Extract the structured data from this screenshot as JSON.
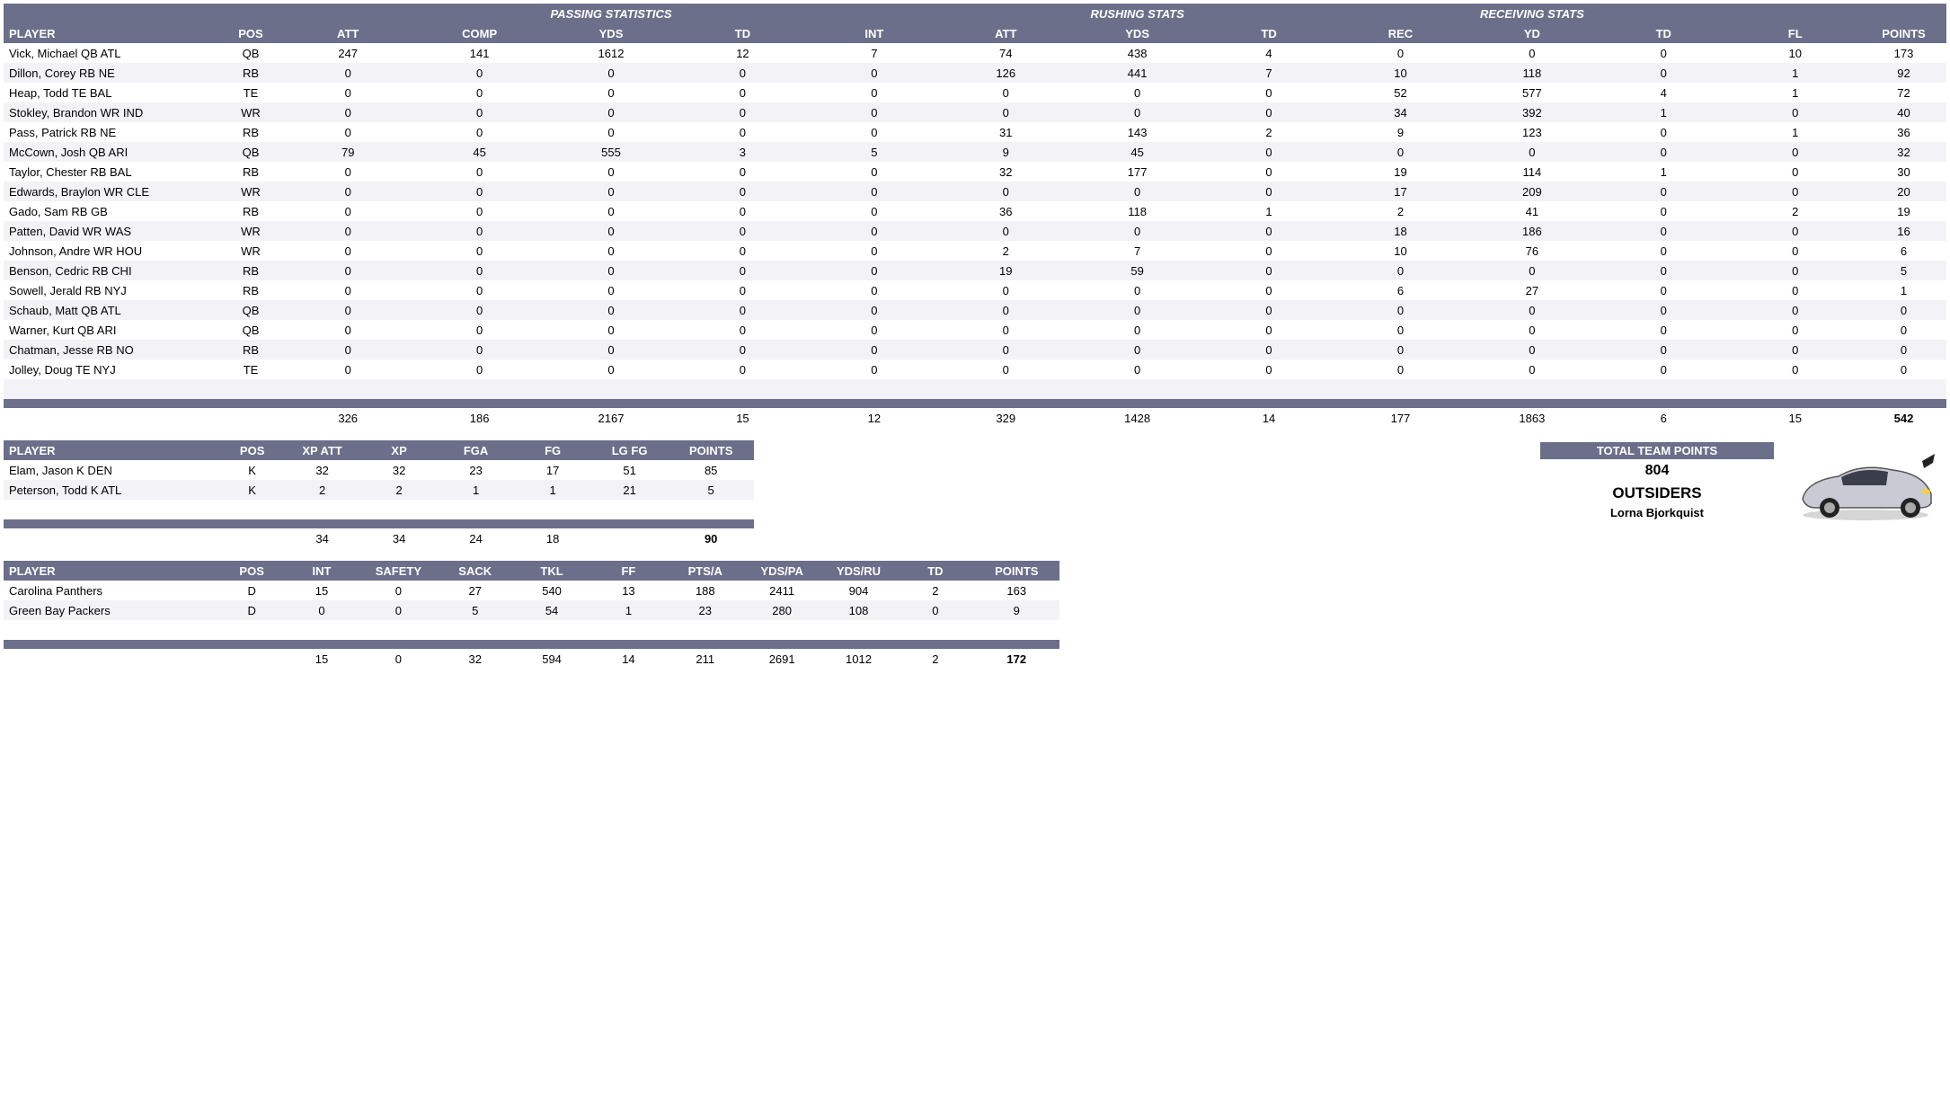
{
  "colors": {
    "header_bg": "#6b6f8a",
    "header_fg": "#ffffff",
    "row_odd": "#ffffff",
    "row_even": "#f3f3f7"
  },
  "table1": {
    "group_headers": [
      "",
      "",
      "PASSING STATISTICS",
      "RUSHING STATS",
      "RECEIVING STATS",
      "",
      ""
    ],
    "columns": [
      "PLAYER",
      "POS",
      "ATT",
      "COMP",
      "YDS",
      "TD",
      "INT",
      "ATT",
      "YDS",
      "TD",
      "REC",
      "YD",
      "TD",
      "FL",
      "POINTS"
    ],
    "rows": [
      [
        "Vick, Michael QB ATL",
        "QB",
        247,
        141,
        1612,
        12,
        7,
        74,
        438,
        4,
        0,
        0,
        0,
        10,
        173
      ],
      [
        "Dillon, Corey RB NE",
        "RB",
        0,
        0,
        0,
        0,
        0,
        126,
        441,
        7,
        10,
        118,
        0,
        1,
        92
      ],
      [
        "Heap, Todd TE BAL",
        "TE",
        0,
        0,
        0,
        0,
        0,
        0,
        0,
        0,
        52,
        577,
        4,
        1,
        72
      ],
      [
        "Stokley, Brandon WR IND",
        "WR",
        0,
        0,
        0,
        0,
        0,
        0,
        0,
        0,
        34,
        392,
        1,
        0,
        40
      ],
      [
        "Pass, Patrick RB NE",
        "RB",
        0,
        0,
        0,
        0,
        0,
        31,
        143,
        2,
        9,
        123,
        0,
        1,
        36
      ],
      [
        "McCown, Josh QB ARI",
        "QB",
        79,
        45,
        555,
        3,
        5,
        9,
        45,
        0,
        0,
        0,
        0,
        0,
        32
      ],
      [
        "Taylor, Chester RB BAL",
        "RB",
        0,
        0,
        0,
        0,
        0,
        32,
        177,
        0,
        19,
        114,
        1,
        0,
        30
      ],
      [
        "Edwards, Braylon WR CLE",
        "WR",
        0,
        0,
        0,
        0,
        0,
        0,
        0,
        0,
        17,
        209,
        0,
        0,
        20
      ],
      [
        "Gado, Sam RB GB",
        "RB",
        0,
        0,
        0,
        0,
        0,
        36,
        118,
        1,
        2,
        41,
        0,
        2,
        19
      ],
      [
        "Patten, David WR WAS",
        "WR",
        0,
        0,
        0,
        0,
        0,
        0,
        0,
        0,
        18,
        186,
        0,
        0,
        16
      ],
      [
        "Johnson, Andre WR HOU",
        "WR",
        0,
        0,
        0,
        0,
        0,
        2,
        7,
        0,
        10,
        76,
        0,
        0,
        6
      ],
      [
        "Benson, Cedric RB CHI",
        "RB",
        0,
        0,
        0,
        0,
        0,
        19,
        59,
        0,
        0,
        0,
        0,
        0,
        5
      ],
      [
        "Sowell, Jerald RB NYJ",
        "RB",
        0,
        0,
        0,
        0,
        0,
        0,
        0,
        0,
        6,
        27,
        0,
        0,
        1
      ],
      [
        "Schaub, Matt QB ATL",
        "QB",
        0,
        0,
        0,
        0,
        0,
        0,
        0,
        0,
        0,
        0,
        0,
        0,
        0
      ],
      [
        "Warner, Kurt QB ARI",
        "QB",
        0,
        0,
        0,
        0,
        0,
        0,
        0,
        0,
        0,
        0,
        0,
        0,
        0
      ],
      [
        "Chatman, Jesse RB NO",
        "RB",
        0,
        0,
        0,
        0,
        0,
        0,
        0,
        0,
        0,
        0,
        0,
        0,
        0
      ],
      [
        "Jolley, Doug TE NYJ",
        "TE",
        0,
        0,
        0,
        0,
        0,
        0,
        0,
        0,
        0,
        0,
        0,
        0,
        0
      ]
    ],
    "totals": [
      "",
      "",
      326,
      186,
      2167,
      15,
      12,
      329,
      1428,
      14,
      177,
      1863,
      6,
      15,
      542
    ]
  },
  "table2": {
    "columns": [
      "PLAYER",
      "POS",
      "XP ATT",
      "XP",
      "FGA",
      "FG",
      "LG FG",
      "POINTS"
    ],
    "rows": [
      [
        "Elam, Jason K DEN",
        "K",
        32,
        32,
        23,
        17,
        51,
        85
      ],
      [
        "Peterson, Todd K ATL",
        "K",
        2,
        2,
        1,
        1,
        21,
        5
      ]
    ],
    "totals": [
      "",
      "",
      34,
      34,
      24,
      18,
      "",
      90
    ]
  },
  "table3": {
    "columns": [
      "PLAYER",
      "POS",
      "INT",
      "SAFETY",
      "SACK",
      "TKL",
      "FF",
      "PTS/A",
      "YDS/PA",
      "YDS/RU",
      "TD",
      "POINTS"
    ],
    "rows": [
      [
        "Carolina Panthers",
        "D",
        15,
        0,
        27,
        540,
        13,
        188,
        2411,
        904,
        2,
        163
      ],
      [
        "Green Bay Packers",
        "D",
        0,
        0,
        5,
        54,
        1,
        23,
        280,
        108,
        0,
        9
      ]
    ],
    "totals": [
      "",
      "",
      15,
      0,
      32,
      594,
      14,
      211,
      2691,
      1012,
      2,
      172
    ]
  },
  "team": {
    "label": "TOTAL TEAM POINTS",
    "points": "804",
    "name": "OUTSIDERS",
    "owner": "Lorna Bjorkquist"
  }
}
